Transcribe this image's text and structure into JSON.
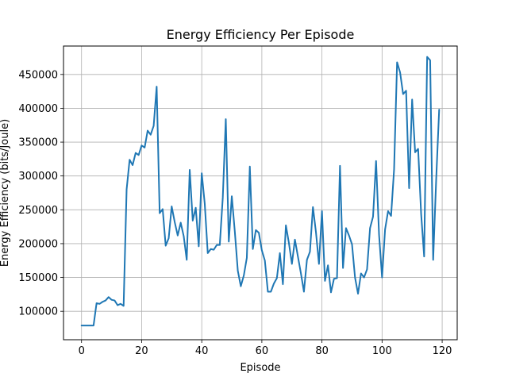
{
  "chart_data": {
    "type": "line",
    "title": "Energy Efficiency Per Episode",
    "xlabel": "Episode",
    "ylabel": "Energy Efficiency (bits/Joule)",
    "xlim": [
      -6,
      125
    ],
    "ylim": [
      58000,
      492000
    ],
    "xticks": [
      0,
      20,
      40,
      60,
      80,
      100,
      120
    ],
    "yticks": [
      100000,
      150000,
      200000,
      250000,
      300000,
      350000,
      400000,
      450000
    ],
    "grid": true,
    "line_color": "#1f77b4",
    "series": [
      {
        "x": [
          0,
          1,
          2,
          3,
          4,
          5,
          6,
          7,
          8,
          9,
          10,
          11,
          12,
          13,
          14,
          15,
          16,
          17,
          18,
          19,
          20,
          21,
          22,
          23,
          24,
          25,
          26,
          27,
          28,
          29,
          30,
          31,
          32,
          33,
          34,
          35,
          36,
          37,
          38,
          39,
          40,
          41,
          42,
          43,
          44,
          45,
          46,
          47,
          48,
          49,
          50,
          51,
          52,
          53,
          54,
          55,
          56,
          57,
          58,
          59,
          60,
          61,
          62,
          63,
          64,
          65,
          66,
          67,
          68,
          69,
          70,
          71,
          72,
          73,
          74,
          75,
          76,
          77,
          78,
          79,
          80,
          81,
          82,
          83,
          84,
          85,
          86,
          87,
          88,
          89,
          90,
          91,
          92,
          93,
          94,
          95,
          96,
          97,
          98,
          99,
          100,
          101,
          102,
          103,
          104,
          105,
          106,
          107,
          108,
          109,
          110,
          111,
          112,
          113,
          114,
          115,
          116,
          117,
          118,
          119
        ],
        "y": [
          79000,
          79000,
          79000,
          79000,
          79000,
          112000,
          111000,
          114000,
          116000,
          121000,
          117000,
          116000,
          109000,
          111000,
          108000,
          280000,
          324000,
          316000,
          334000,
          331000,
          345000,
          342000,
          367000,
          361000,
          374000,
          432000,
          245000,
          251000,
          197000,
          208000,
          255000,
          232000,
          212000,
          231000,
          211000,
          176000,
          309000,
          234000,
          253000,
          196000,
          304000,
          259000,
          186000,
          192000,
          191000,
          198000,
          198000,
          268000,
          384000,
          203000,
          270000,
          218000,
          160000,
          137000,
          153000,
          179000,
          314000,
          192000,
          220000,
          216000,
          190000,
          175000,
          129000,
          129000,
          141000,
          149000,
          186000,
          140000,
          227000,
          201000,
          170000,
          206000,
          181000,
          156000,
          129000,
          176000,
          188000,
          254000,
          217000,
          170000,
          248000,
          145000,
          168000,
          128000,
          148000,
          149000,
          315000,
          164000,
          223000,
          212000,
          199000,
          150000,
          126000,
          156000,
          150000,
          162000,
          223000,
          240000,
          322000,
          213000,
          150000,
          221000,
          248000,
          241000,
          310000,
          468000,
          453000,
          421000,
          426000,
          282000,
          413000,
          335000,
          340000,
          244000,
          181000,
          476000,
          471000,
          176000,
          294000,
          398000
        ]
      }
    ]
  }
}
